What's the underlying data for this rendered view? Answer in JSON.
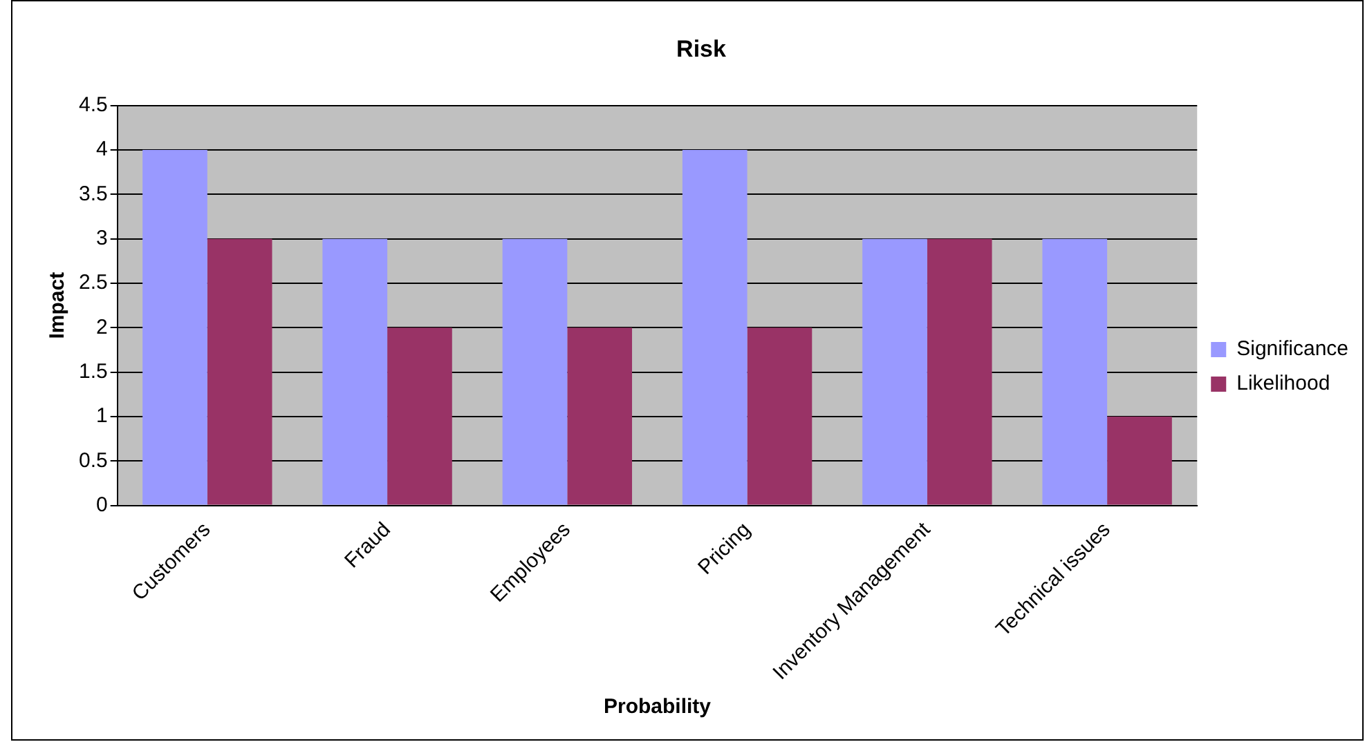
{
  "chart_data": {
    "type": "bar",
    "title": "Risk",
    "xlabel": "Probability",
    "ylabel": "Impact",
    "categories": [
      "Customers",
      "Fraud",
      "Employees",
      "Pricing",
      "Inventory Management",
      "Technical issues"
    ],
    "series": [
      {
        "name": "Significance",
        "color": "#9999ff",
        "values": [
          4,
          3,
          3,
          4,
          3,
          3
        ]
      },
      {
        "name": "Likelihood",
        "color": "#993366",
        "values": [
          3,
          2,
          2,
          2,
          3,
          1
        ]
      }
    ],
    "ylim": [
      0,
      4.5
    ],
    "yticks": [
      0,
      0.5,
      1,
      1.5,
      2,
      2.5,
      3,
      3.5,
      4,
      4.5
    ],
    "grid": "y",
    "legend": "right"
  }
}
